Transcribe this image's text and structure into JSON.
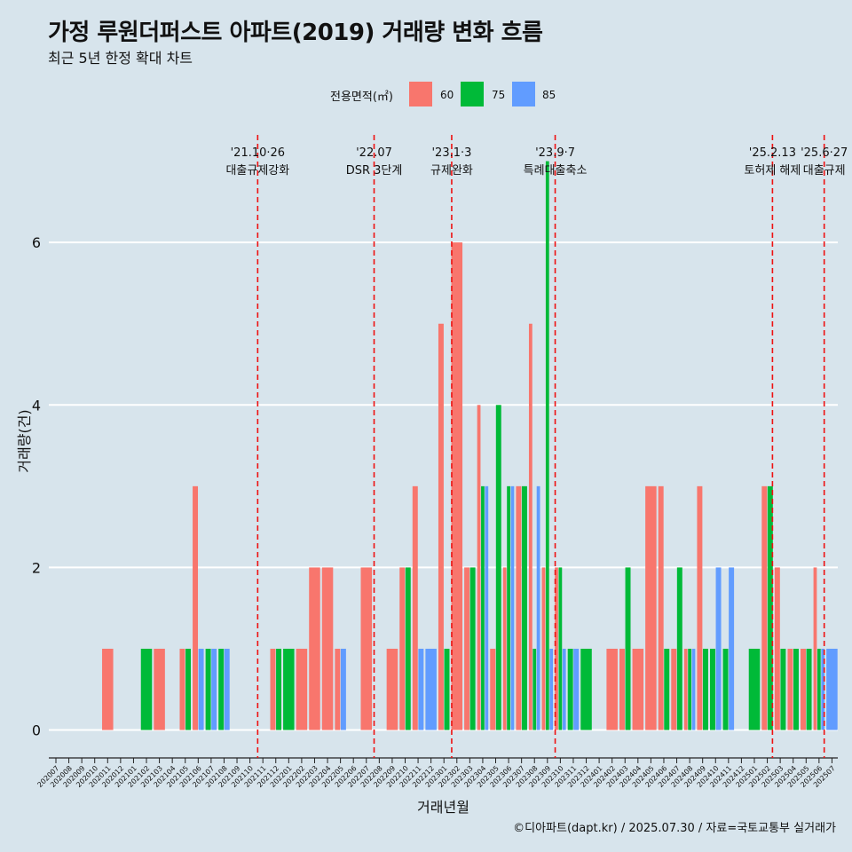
{
  "chart_data": {
    "type": "bar",
    "title": "가정 루원더퍼스트 아파트(2019) 거래량 변화 흐름",
    "subtitle": "최근 5년 한정 확대 차트",
    "xlabel": "거래년월",
    "ylabel": "거래량(건)",
    "ylim": [
      -0.3,
      7.4
    ],
    "y_ticks": [
      0,
      2,
      4,
      6
    ],
    "grid": true,
    "legend_title": "전용면적(㎡)",
    "legend_position": "top-center",
    "months": [
      "202007",
      "202008",
      "202009",
      "202010",
      "202011",
      "202012",
      "202101",
      "202102",
      "202103",
      "202104",
      "202105",
      "202106",
      "202107",
      "202108",
      "202109",
      "202110",
      "202111",
      "202112",
      "202201",
      "202202",
      "202203",
      "202204",
      "202205",
      "202206",
      "202207",
      "202208",
      "202209",
      "202210",
      "202211",
      "202212",
      "202301",
      "202302",
      "202303",
      "202304",
      "202305",
      "202306",
      "202307",
      "202308",
      "202309",
      "202310",
      "202311",
      "202312",
      "202401",
      "202402",
      "202403",
      "202404",
      "202405",
      "202406",
      "202407",
      "202408",
      "202409",
      "202410",
      "202411",
      "202412",
      "202501",
      "202502",
      "202503",
      "202504",
      "202505",
      "202506",
      "202507"
    ],
    "x_tick_labels": [
      "202007",
      "202008",
      "202009",
      "202010",
      "202011",
      "202012",
      "202101",
      "202102",
      "202103",
      "202104",
      "202105",
      "202106",
      "202107",
      "202108",
      "202109",
      "202110",
      "202111",
      "202112",
      "202201",
      "202202",
      "202203",
      "202204",
      "202205",
      "202206",
      "202207",
      "202208",
      "202209",
      "202210",
      "202211",
      "202212",
      "202301",
      "202302",
      "202303",
      "202304",
      "202305",
      "202306",
      "202307",
      "202308",
      "202309",
      "202310",
      "202311",
      "202312",
      "202401",
      "202402",
      "202403",
      "202404",
      "202405",
      "202406",
      "202407",
      "202408",
      "202409",
      "202410",
      "202411",
      "202412",
      "202501",
      "202502",
      "202503",
      "202504",
      "202505",
      "202506",
      "202507"
    ],
    "series": [
      {
        "name": "60",
        "color": "#f8766d",
        "values": [
          0,
          0,
          0,
          0,
          1,
          0,
          0,
          0,
          1,
          0,
          1,
          3,
          0,
          0,
          0,
          0,
          0,
          1,
          0,
          1,
          2,
          2,
          1,
          0,
          2,
          0,
          1,
          2,
          3,
          0,
          5,
          6,
          2,
          4,
          1,
          2,
          3,
          5,
          2,
          2,
          0,
          0,
          0,
          1,
          1,
          1,
          3,
          3,
          1,
          1,
          3,
          0,
          0,
          0,
          0,
          3,
          2,
          1,
          1,
          2,
          0
        ]
      },
      {
        "name": "75",
        "color": "#00ba38",
        "values": [
          0,
          0,
          0,
          0,
          0,
          0,
          0,
          1,
          0,
          0,
          1,
          0,
          1,
          1,
          0,
          0,
          0,
          1,
          1,
          0,
          0,
          0,
          0,
          0,
          0,
          0,
          0,
          2,
          0,
          0,
          1,
          0,
          2,
          3,
          4,
          3,
          3,
          1,
          7,
          2,
          1,
          1,
          0,
          0,
          2,
          0,
          0,
          1,
          2,
          1,
          1,
          1,
          1,
          0,
          1,
          3,
          1,
          1,
          1,
          1,
          0
        ]
      },
      {
        "name": "85",
        "color": "#619cff",
        "values": [
          0,
          0,
          0,
          0,
          0,
          0,
          0,
          0,
          0,
          0,
          0,
          1,
          1,
          1,
          0,
          0,
          0,
          0,
          0,
          0,
          0,
          0,
          1,
          0,
          0,
          0,
          0,
          0,
          1,
          1,
          0,
          0,
          0,
          3,
          0,
          3,
          0,
          3,
          1,
          1,
          1,
          0,
          0,
          0,
          0,
          0,
          0,
          0,
          0,
          1,
          0,
          2,
          2,
          0,
          0,
          0,
          0,
          0,
          0,
          1,
          1
        ]
      }
    ],
    "events": [
      {
        "date": "'21.10·26",
        "label": "대출규제강화",
        "month_index": 15.6
      },
      {
        "date": "'22.07",
        "label": "DSR 3단계",
        "month_index": 24.6
      },
      {
        "date": "'23.1·3",
        "label": "규제완화",
        "month_index": 30.6
      },
      {
        "date": "'23.9·7",
        "label": "특례대출축소",
        "month_index": 38.6
      },
      {
        "date": "'25.2.13",
        "label": "토허제 해제",
        "month_index": 55.4
      },
      {
        "date": "'25.6·27",
        "label": "대출규제",
        "month_index": 59.4
      }
    ],
    "event_line_color": "#ee1111",
    "grid_color": "#ffffff",
    "background_color": "#d7e4ec"
  },
  "caption": "©디아파트(dapt.kr) / 2025.07.30 / 자료=국토교통부 실거래가"
}
